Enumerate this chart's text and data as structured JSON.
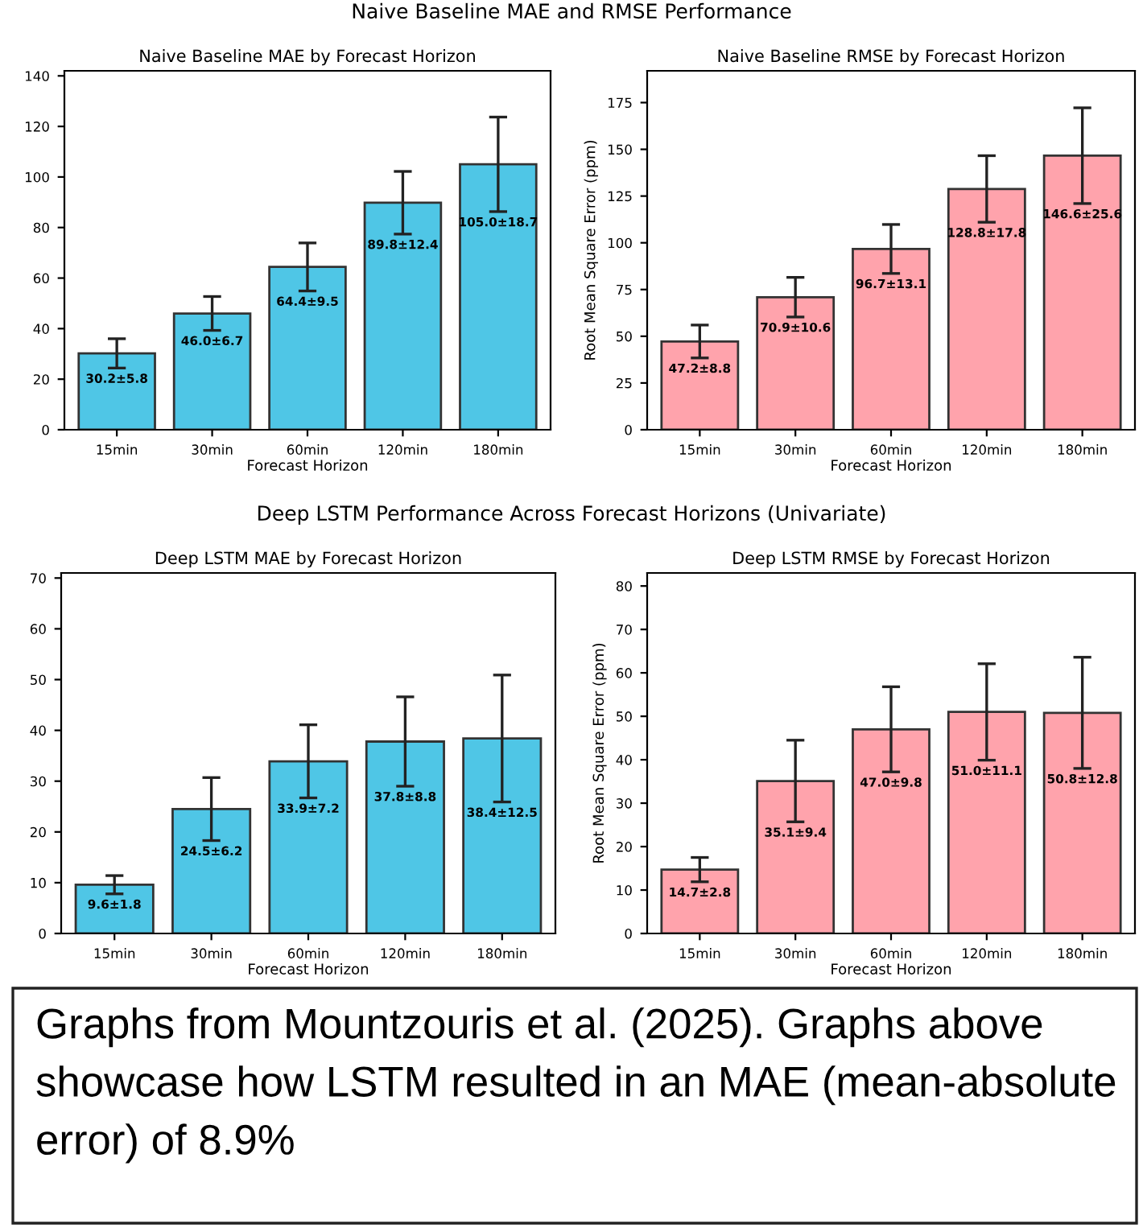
{
  "chart_data": [
    {
      "type": "bar",
      "subtitle": "Naive Baseline MAE and RMSE Performance",
      "title": "Naive Baseline MAE by Forecast Horizon",
      "xlabel": "Forecast Horizon",
      "categories": [
        "15min",
        "30min",
        "60min",
        "120min",
        "180min"
      ],
      "values": [
        30.2,
        46.0,
        64.4,
        89.8,
        105.0
      ],
      "errors": [
        5.8,
        6.7,
        9.5,
        12.4,
        18.7
      ],
      "value_labels": [
        "30.2±5.8",
        "46.0±6.7",
        "64.4±9.5",
        "89.8±12.4",
        "105.0±18.7"
      ],
      "color": "#4fc6e6",
      "ylim": [
        0,
        142
      ],
      "yticks": [
        0,
        20,
        40,
        60,
        80,
        100,
        120,
        140
      ]
    },
    {
      "type": "bar",
      "title": "Naive Baseline RMSE by Forecast Horizon",
      "xlabel": "Forecast Horizon",
      "ylabel": "Root Mean Square Error (ppm)",
      "categories": [
        "15min",
        "30min",
        "60min",
        "120min",
        "180min"
      ],
      "values": [
        47.2,
        70.9,
        96.7,
        128.8,
        146.6
      ],
      "errors": [
        8.8,
        10.6,
        13.1,
        17.8,
        25.6
      ],
      "value_labels": [
        "47.2±8.8",
        "70.9±10.6",
        "96.7±13.1",
        "128.8±17.8",
        "146.6±25.6"
      ],
      "color": "#ffa3ac",
      "ylim": [
        0,
        192
      ],
      "yticks": [
        0,
        25,
        50,
        75,
        100,
        125,
        150,
        175
      ]
    },
    {
      "type": "bar",
      "subtitle": "Deep LSTM Performance Across Forecast Horizons (Univariate)",
      "title": "Deep LSTM MAE by Forecast Horizon",
      "xlabel": "Forecast Horizon",
      "categories": [
        "15min",
        "30min",
        "60min",
        "120min",
        "180min"
      ],
      "values": [
        9.6,
        24.5,
        33.9,
        37.8,
        38.4
      ],
      "errors": [
        1.8,
        6.2,
        7.2,
        8.8,
        12.5
      ],
      "value_labels": [
        "9.6±1.8",
        "24.5±6.2",
        "33.9±7.2",
        "37.8±8.8",
        "38.4±12.5"
      ],
      "color": "#4fc6e6",
      "ylim": [
        0,
        71
      ],
      "yticks": [
        0,
        10,
        20,
        30,
        40,
        50,
        60,
        70
      ]
    },
    {
      "type": "bar",
      "title": "Deep LSTM RMSE by Forecast Horizon",
      "xlabel": "Forecast Horizon",
      "ylabel": "Root Mean Square Error (ppm)",
      "categories": [
        "15min",
        "30min",
        "60min",
        "120min",
        "180min"
      ],
      "values": [
        14.7,
        35.1,
        47.0,
        51.0,
        50.8
      ],
      "errors": [
        2.8,
        9.4,
        9.8,
        11.1,
        12.8
      ],
      "value_labels": [
        "14.7±2.8",
        "35.1±9.4",
        "47.0±9.8",
        "51.0±11.1",
        "50.8±12.8"
      ],
      "color": "#ffa3ac",
      "ylim": [
        0,
        83
      ],
      "yticks": [
        0,
        10,
        20,
        30,
        40,
        50,
        60,
        70,
        80
      ],
      "annotations": [
        "Graphs from Mountzouris et al. (2025). Graphs above showcase how LSTM resulted in an MAE (mean-absolute error) of 8.9%"
      ]
    }
  ]
}
